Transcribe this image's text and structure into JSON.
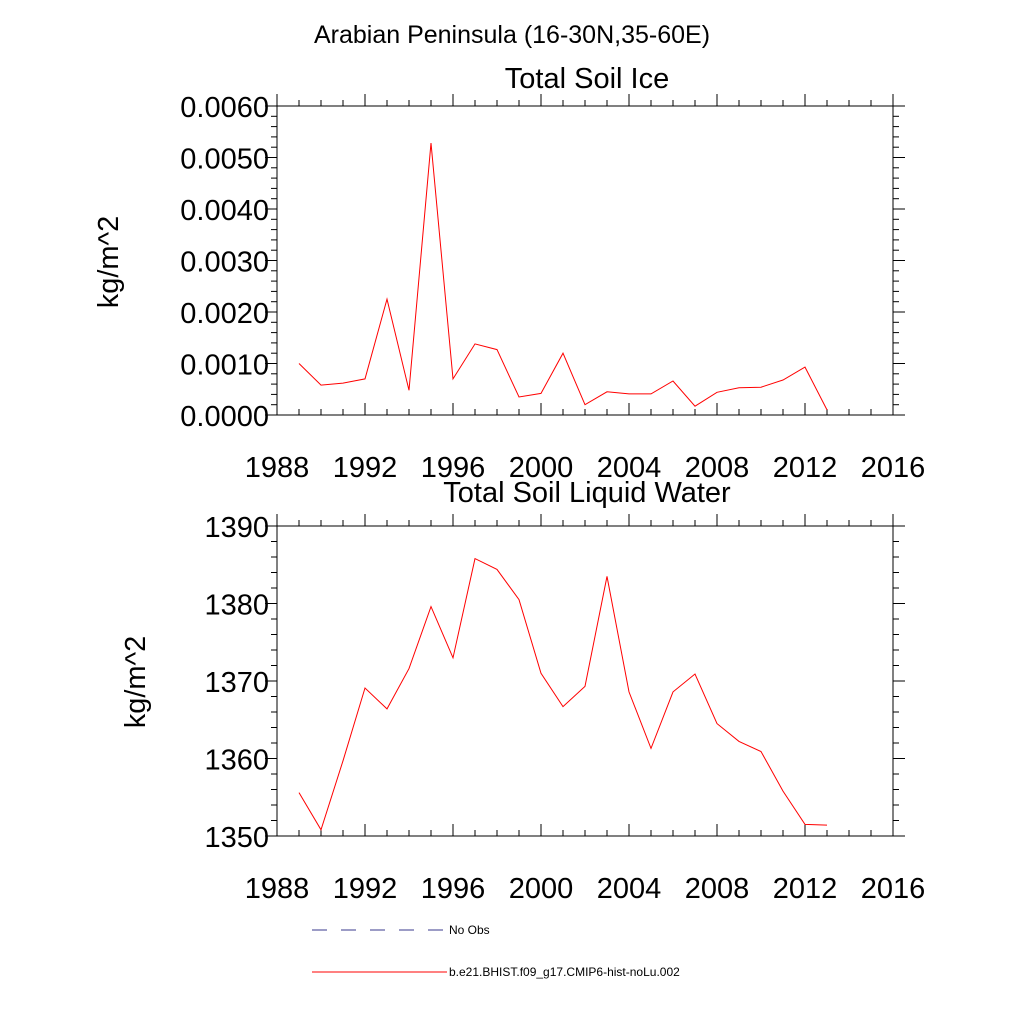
{
  "figure_title": "Arabian Peninsula (16-30N,35-60E)",
  "chart_data": [
    {
      "type": "line",
      "title": "Total Soil Ice",
      "xlabel": "",
      "ylabel": "kg/m^2",
      "xlim": [
        1988,
        2016
      ],
      "ylim": [
        0,
        0.006
      ],
      "xticks": [
        1988,
        1992,
        1996,
        2000,
        2004,
        2008,
        2012,
        2016
      ],
      "xtick_labels": [
        "1988",
        "1992",
        "1996",
        "2000",
        "2004",
        "2008",
        "2012",
        "2016"
      ],
      "yticks": [
        0,
        0.001,
        0.002,
        0.003,
        0.004,
        0.005,
        0.006
      ],
      "ytick_labels": [
        "0.0000",
        "0.0010",
        "0.0020",
        "0.0030",
        "0.0040",
        "0.0050",
        "0.0060"
      ],
      "grid": false,
      "series": [
        {
          "name": "b.e21.BHIST.f09_g17.CMIP6-hist-noLu.002",
          "color": "#ff0000",
          "x": [
            1989,
            1990,
            1991,
            1992,
            1993,
            1994,
            1995,
            1996,
            1997,
            1998,
            1999,
            2000,
            2001,
            2002,
            2003,
            2004,
            2005,
            2006,
            2007,
            2008,
            2009,
            2010,
            2011,
            2012,
            2013
          ],
          "values": [
            0.001,
            0.00058,
            0.00062,
            0.0007,
            0.00225,
            0.00048,
            0.00528,
            0.0007,
            0.00138,
            0.00127,
            0.00035,
            0.00042,
            0.0012,
            0.0002,
            0.00045,
            0.00041,
            0.00041,
            0.00066,
            0.00017,
            0.00044,
            0.00053,
            0.00054,
            0.00068,
            0.00093,
            0.0001
          ]
        }
      ]
    },
    {
      "type": "line",
      "title": "Total Soil Liquid Water",
      "xlabel": "",
      "ylabel": "kg/m^2",
      "xlim": [
        1988,
        2016
      ],
      "ylim": [
        1350,
        1390
      ],
      "xticks": [
        1988,
        1992,
        1996,
        2000,
        2004,
        2008,
        2012,
        2016
      ],
      "xtick_labels": [
        "1988",
        "1992",
        "1996",
        "2000",
        "2004",
        "2008",
        "2012",
        "2016"
      ],
      "yticks": [
        1350,
        1360,
        1370,
        1380,
        1390
      ],
      "ytick_labels": [
        "1350",
        "1360",
        "1370",
        "1380",
        "1390"
      ],
      "grid": false,
      "series": [
        {
          "name": "b.e21.BHIST.f09_g17.CMIP6-hist-noLu.002",
          "color": "#ff0000",
          "x": [
            1989,
            1990,
            1991,
            1992,
            1993,
            1994,
            1995,
            1996,
            1997,
            1998,
            1999,
            2000,
            2001,
            2002,
            2003,
            2004,
            2005,
            2006,
            2007,
            2008,
            2009,
            2010,
            2011,
            2012,
            2013
          ],
          "values": [
            1355.6,
            1350.8,
            1359.7,
            1369.1,
            1366.4,
            1371.6,
            1379.6,
            1373.0,
            1385.8,
            1384.4,
            1380.5,
            1371.0,
            1366.7,
            1369.3,
            1383.5,
            1368.6,
            1361.3,
            1368.6,
            1370.9,
            1364.5,
            1362.2,
            1360.9,
            1355.8,
            1351.5,
            1351.4
          ]
        }
      ]
    }
  ],
  "legend": {
    "placement": "bottom-center",
    "items": [
      {
        "label": "No Obs",
        "color": "#3a3a8c",
        "style": "dashed"
      },
      {
        "label": "b.e21.BHIST.f09_g17.CMIP6-hist-noLu.002",
        "color": "#ff0000",
        "style": "solid"
      }
    ]
  }
}
